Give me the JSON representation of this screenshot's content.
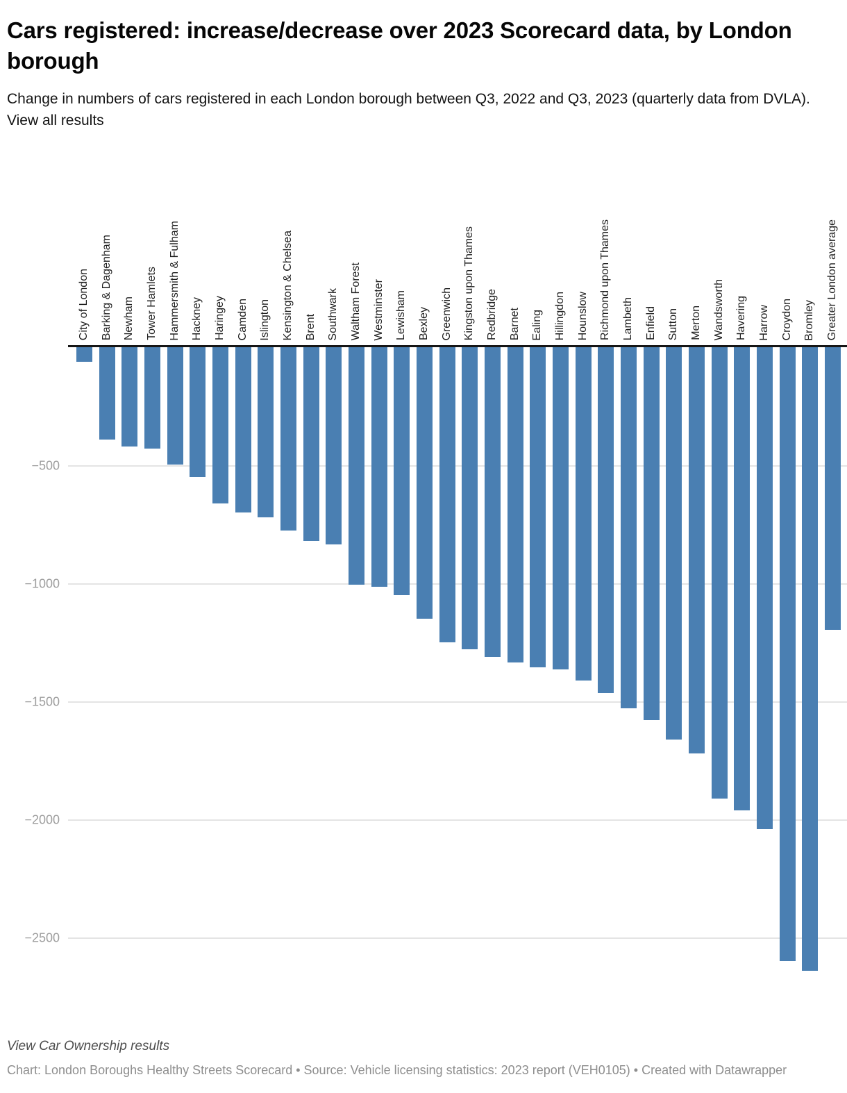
{
  "header": {
    "title": "Cars registered: increase/decrease over 2023 Scorecard data, by London borough",
    "description": "Change in numbers of cars registered in each London borough between Q3, 2022 and Q3, 2023 (quarterly data from DVLA).",
    "description_link": "View all results"
  },
  "chart_data": {
    "type": "bar",
    "orientation": "vertical",
    "title": "Cars registered: increase/decrease over 2023 Scorecard data, by London borough",
    "xlabel": "",
    "ylabel": "",
    "grid": true,
    "baseline": 0,
    "ylim": [
      0,
      -2670
    ],
    "bar_color": "#4a7fb2",
    "axis_color": "#161616",
    "gridline_color": "#e4e4e4",
    "tick_text_color": "#9e9e9e",
    "categories": [
      "City of London",
      "Barking & Dagenham",
      "Newham",
      "Tower Hamlets",
      "Hammersmith & Fulham",
      "Hackney",
      "Haringey",
      "Camden",
      "Islington",
      "Kensington & Chelsea",
      "Brent",
      "Southwark",
      "Waltham Forest",
      "Westminster",
      "Lewisham",
      "Bexley",
      "Greenwich",
      "Kingston upon Thames",
      "Redbridge",
      "Barnet",
      "Ealing",
      "Hillingdon",
      "Hounslow",
      "Richmond upon Thames",
      "Lambeth",
      "Enfield",
      "Sutton",
      "Merton",
      "Wandsworth",
      "Havering",
      "Harrow",
      "Croydon",
      "Bromley",
      "Greater London average"
    ],
    "values": [
      -60,
      -390,
      -420,
      -430,
      -495,
      -550,
      -660,
      -700,
      -720,
      -775,
      -820,
      -835,
      -1005,
      -1015,
      -1050,
      -1150,
      -1250,
      -1280,
      -1310,
      -1335,
      -1355,
      -1365,
      -1410,
      -1465,
      -1530,
      -1580,
      -1660,
      -1720,
      -1910,
      -1960,
      -2040,
      -2600,
      -2640,
      -1195
    ],
    "yticks": [
      {
        "label": "−500",
        "value": -500
      },
      {
        "label": "−1000",
        "value": -1000
      },
      {
        "label": "−1500",
        "value": -1500
      },
      {
        "label": "−2000",
        "value": -2000
      },
      {
        "label": "−2500",
        "value": -2500
      }
    ]
  },
  "footer": {
    "view_link": "View Car Ownership results",
    "caption": "Chart: London Boroughs Healthy Streets Scorecard • Source: Vehicle licensing statistics: 2023 report (VEH0105) • Created with Datawrapper"
  }
}
